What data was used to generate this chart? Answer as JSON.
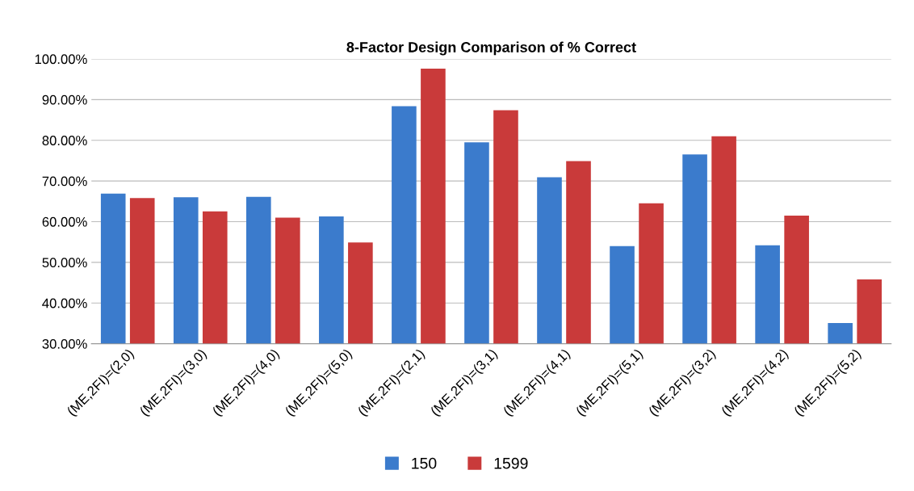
{
  "chart_data": {
    "type": "bar",
    "title": "8-Factor Design Comparison of % Correct",
    "categories": [
      "(ME,2FI)=(2,0)",
      "(ME,2FI)=(3,0)",
      "(ME,2FI)=(4,0)",
      "(ME,2FI)=(5,0)",
      "(ME,2FI)=(2,1)",
      "(ME,2FI)=(3,1)",
      "(ME,2FI)=(4,1)",
      "(ME,2FI)=(5,1)",
      "(ME,2FI)=(3,2)",
      "(ME,2FI)=(4,2)",
      "(ME,2FI)=(5,2)"
    ],
    "series": [
      {
        "name": "150",
        "color": "#3b7bcc",
        "values": [
          66.9,
          66.0,
          66.1,
          61.3,
          88.4,
          79.5,
          70.9,
          54.0,
          76.5,
          54.2,
          35.1
        ]
      },
      {
        "name": "1599",
        "color": "#c93a3a",
        "values": [
          65.8,
          62.5,
          61.0,
          54.9,
          97.6,
          87.4,
          74.9,
          64.5,
          81.0,
          61.5,
          45.8
        ]
      }
    ],
    "ylim": [
      30,
      100
    ],
    "yticks": [
      {
        "value": 30,
        "label": "30.00%"
      },
      {
        "value": 40,
        "label": "40.00%"
      },
      {
        "value": 50,
        "label": "50.00%"
      },
      {
        "value": 60,
        "label": "60.00%"
      },
      {
        "value": 70,
        "label": "70.00%"
      },
      {
        "value": 80,
        "label": "80.00%"
      },
      {
        "value": 90,
        "label": "90.00%"
      },
      {
        "value": 100,
        "label": "100.00%"
      }
    ],
    "grid": "y",
    "legend": "bottom"
  }
}
